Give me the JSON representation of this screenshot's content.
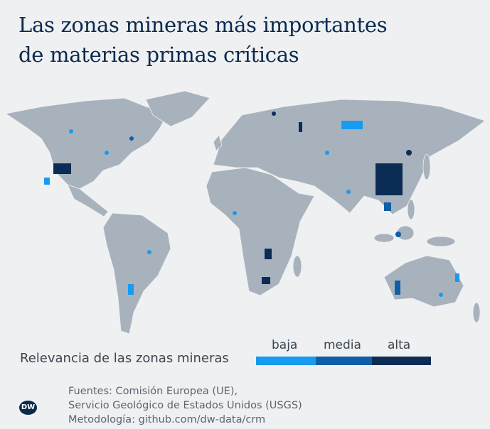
{
  "title": {
    "line1": "Las zonas mineras más importantes",
    "line2": "de materias primas críticas"
  },
  "legend": {
    "label": "Relevancia de las zonas mineras",
    "levels": [
      {
        "label": "baja",
        "color": "#169bf0"
      },
      {
        "label": "media",
        "color": "#0e5fa8"
      },
      {
        "label": "alta",
        "color": "#0b2c55"
      }
    ]
  },
  "colors": {
    "land": "#a8b2bc",
    "background": "#eef0f2",
    "title": "#0c2a4e"
  },
  "logo": "DW",
  "sources": {
    "line1": "Fuentes: Comisión Europea (UE),",
    "line2": "Servicio Geológico de Estados Unidos (USGS)",
    "line3": "Metodología: github.com/dw-data/crm"
  }
}
